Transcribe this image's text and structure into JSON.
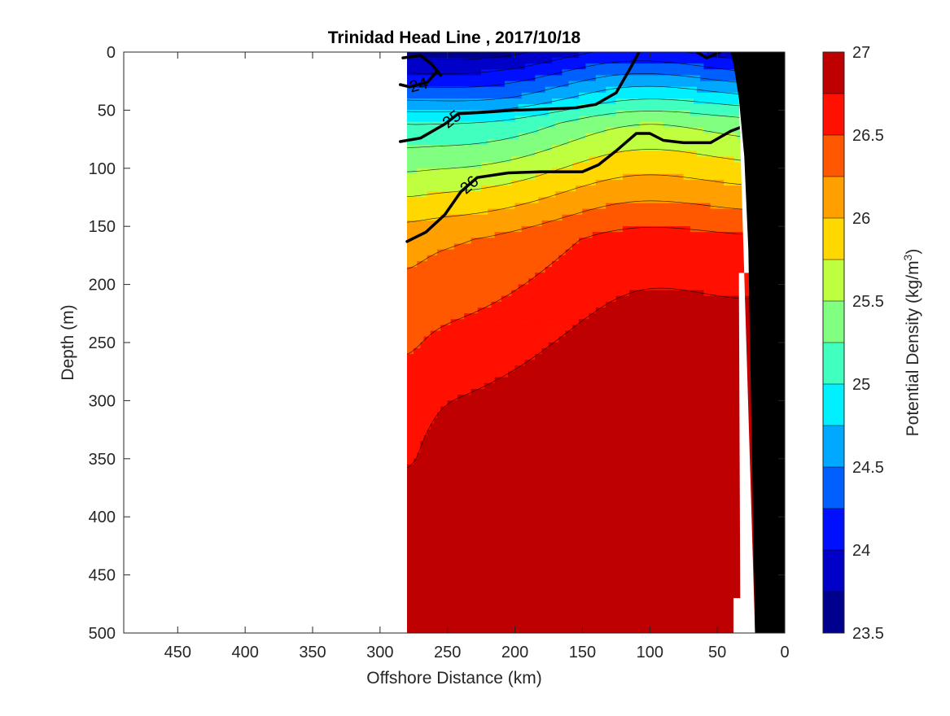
{
  "chart_data": {
    "type": "contourf",
    "title": "Trinidad Head Line , 2017/10/18",
    "xlabel": "Offshore Distance (km)",
    "ylabel": "Depth (m)",
    "xlim": [
      490,
      0
    ],
    "ylim": [
      0,
      500
    ],
    "x_reversed": true,
    "y_reversed": true,
    "x_ticks": [
      450,
      400,
      350,
      300,
      250,
      200,
      150,
      100,
      50,
      0
    ],
    "y_ticks": [
      0,
      50,
      100,
      150,
      200,
      250,
      300,
      350,
      400,
      450,
      500
    ],
    "colorbar": {
      "label": "Potential Density (kg/m",
      "label_superscript": "3",
      "label_suffix": ")",
      "levels": [
        23.5,
        23.75,
        24,
        24.25,
        24.5,
        24.75,
        25,
        25.25,
        25.5,
        25.75,
        26,
        26.25,
        26.5,
        26.75,
        27
      ],
      "tick_values": [
        23.5,
        24,
        24.5,
        25,
        25.5,
        26,
        26.5,
        27
      ],
      "tick_labels": [
        "23.5",
        "24",
        "24.5",
        "25",
        "25.5",
        "26",
        "26.5",
        "27"
      ],
      "colors": [
        "#00008f",
        "#0000c8",
        "#0010ff",
        "#0060ff",
        "#00a8ff",
        "#00f0ff",
        "#40ffbf",
        "#80ff80",
        "#bfff40",
        "#ffd800",
        "#ffa000",
        "#ff5800",
        "#ff1000",
        "#bf0000"
      ]
    },
    "data_extent_km": [
      280,
      20
    ],
    "bold_contours": [
      {
        "level": 24,
        "label": "24",
        "points": [
          [
            285,
            28
          ],
          [
            278,
            30
          ],
          [
            265,
            26
          ],
          [
            258,
            17
          ]
        ]
      },
      {
        "level": 24,
        "label": "",
        "points": [
          [
            283,
            5
          ],
          [
            270,
            3
          ],
          [
            262,
            10
          ],
          [
            255,
            20
          ]
        ]
      },
      {
        "level": 25,
        "label": "25",
        "points": [
          [
            285,
            77
          ],
          [
            270,
            74
          ],
          [
            252,
            62
          ],
          [
            242,
            53
          ],
          [
            225,
            52
          ],
          [
            200,
            50
          ],
          [
            175,
            49
          ],
          [
            155,
            48
          ],
          [
            140,
            45
          ],
          [
            125,
            35
          ],
          [
            115,
            15
          ],
          [
            108,
            0
          ]
        ]
      },
      {
        "level": 26,
        "label": "26",
        "points": [
          [
            280,
            163
          ],
          [
            266,
            155
          ],
          [
            252,
            140
          ],
          [
            240,
            120
          ],
          [
            228,
            108
          ],
          [
            205,
            104
          ],
          [
            180,
            103
          ],
          [
            150,
            103
          ],
          [
            138,
            97
          ],
          [
            125,
            85
          ],
          [
            110,
            70
          ],
          [
            100,
            70
          ],
          [
            90,
            76
          ],
          [
            75,
            78
          ],
          [
            55,
            78
          ],
          [
            40,
            68
          ],
          [
            22,
            60
          ]
        ]
      },
      {
        "level": 25.5,
        "label": "",
        "points": [
          [
            65,
            0
          ],
          [
            58,
            5
          ],
          [
            48,
            0
          ]
        ]
      }
    ],
    "seafloor_km_m": [
      [
        22,
        500
      ],
      [
        25,
        300
      ],
      [
        27,
        170
      ],
      [
        30,
        90
      ],
      [
        34,
        40
      ],
      [
        38,
        10
      ],
      [
        40,
        0
      ]
    ]
  }
}
